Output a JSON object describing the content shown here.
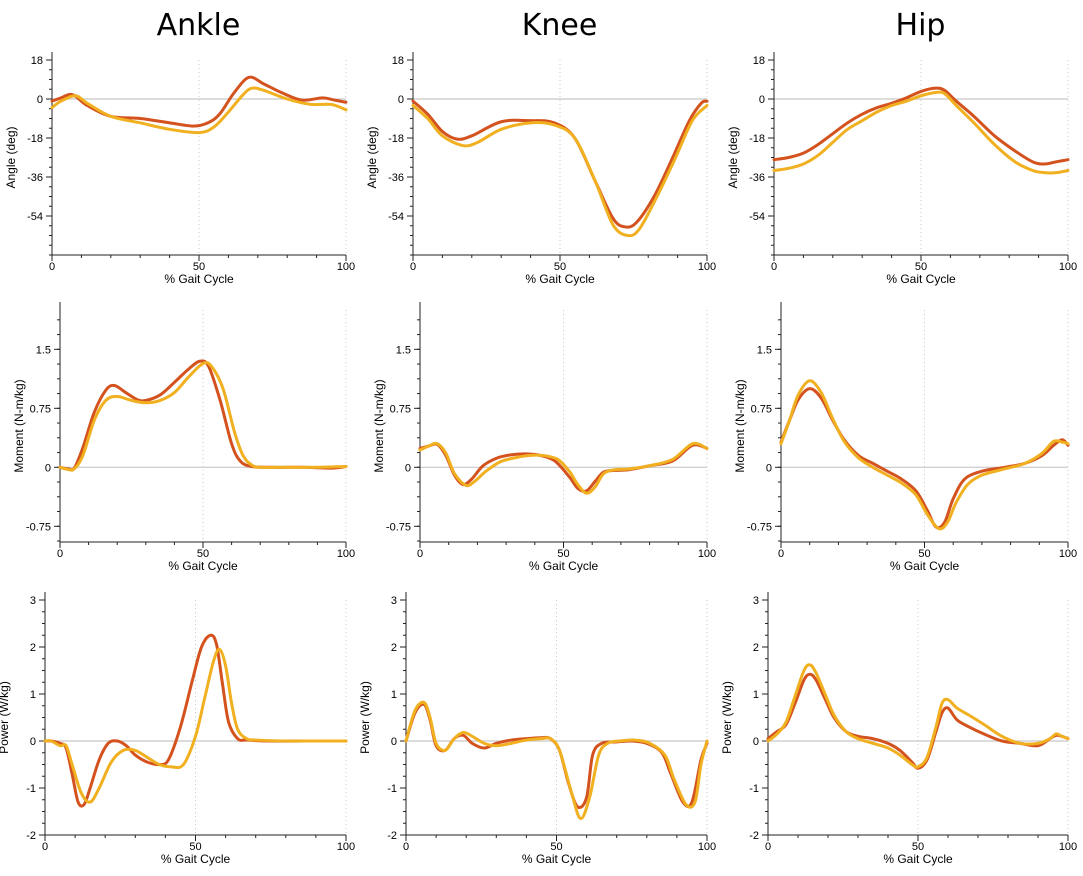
{
  "column_titles": [
    "Ankle",
    "Knee",
    "Hip"
  ],
  "colors": {
    "series_a": "#d4521e",
    "series_b": "#f0b020",
    "zero_line": "#c8c8c8",
    "grid": "#c8c8c8"
  },
  "chart_data": [
    {
      "id": "ankle-angle",
      "type": "line",
      "xlabel": "% Gait Cycle",
      "ylabel": "Angle (deg)",
      "xlim": [
        0,
        100
      ],
      "ylim": [
        -72,
        18
      ],
      "xticks": [
        0,
        50,
        100
      ],
      "yticks": [
        18,
        0,
        -18,
        -36,
        -54
      ],
      "series": [
        {
          "x": [
            0,
            3,
            7,
            12,
            20,
            30,
            40,
            48,
            53,
            57,
            62,
            67,
            72,
            78,
            85,
            92,
            96,
            100
          ],
          "values": [
            -1,
            0.5,
            2,
            -3,
            -8,
            -9,
            -11,
            -12.5,
            -11,
            -7,
            3,
            10,
            7,
            3,
            -0.5,
            0.5,
            -0.5,
            -1.5
          ]
        },
        {
          "x": [
            0,
            3,
            8,
            12,
            20,
            30,
            40,
            50,
            55,
            60,
            65,
            68,
            72,
            80,
            88,
            95,
            100
          ],
          "values": [
            -4,
            -1,
            1.5,
            -2,
            -8,
            -11,
            -14,
            -15.5,
            -13,
            -6,
            2,
            5,
            4,
            0,
            -2.5,
            -2.5,
            -5
          ]
        }
      ]
    },
    {
      "id": "knee-angle",
      "type": "line",
      "xlabel": "% Gait Cycle",
      "ylabel": "Angle (deg)",
      "xlim": [
        0,
        100
      ],
      "ylim": [
        -72,
        18
      ],
      "xticks": [
        0,
        50,
        100
      ],
      "yticks": [
        18,
        0,
        -18,
        -36,
        -54
      ],
      "series": [
        {
          "x": [
            0,
            5,
            10,
            15,
            20,
            30,
            40,
            48,
            55,
            62,
            68,
            72,
            76,
            82,
            88,
            94,
            98,
            100
          ],
          "values": [
            -1,
            -7,
            -15,
            -18.5,
            -17,
            -10.5,
            -10,
            -11,
            -18,
            -38,
            -55,
            -59,
            -57,
            -45,
            -28,
            -10,
            -2,
            -1
          ]
        },
        {
          "x": [
            0,
            5,
            10,
            17,
            22,
            30,
            40,
            48,
            55,
            62,
            68,
            73,
            77,
            83,
            89,
            95,
            100
          ],
          "values": [
            -3,
            -9,
            -17,
            -21.5,
            -20,
            -14,
            -11,
            -12,
            -18,
            -38,
            -58,
            -63,
            -60,
            -45,
            -28,
            -10,
            -3
          ]
        }
      ]
    },
    {
      "id": "hip-angle",
      "type": "line",
      "xlabel": "% Gait Cycle",
      "ylabel": "Angle (deg)",
      "xlim": [
        0,
        100
      ],
      "ylim": [
        -72,
        18
      ],
      "xticks": [
        0,
        50,
        100
      ],
      "yticks": [
        18,
        0,
        -18,
        -36,
        -54
      ],
      "series": [
        {
          "x": [
            0,
            5,
            10,
            15,
            20,
            25,
            30,
            35,
            40,
            45,
            50,
            55,
            58,
            62,
            68,
            75,
            82,
            88,
            92,
            96,
            100
          ],
          "values": [
            -28,
            -27,
            -25,
            -21,
            -16,
            -11,
            -7,
            -4,
            -2,
            0.5,
            3.5,
            5,
            4,
            -1,
            -8,
            -17,
            -24,
            -29,
            -30,
            -29,
            -28
          ]
        },
        {
          "x": [
            0,
            5,
            10,
            15,
            20,
            25,
            30,
            35,
            40,
            45,
            50,
            55,
            58,
            62,
            68,
            75,
            82,
            88,
            92,
            96,
            100
          ],
          "values": [
            -33,
            -32,
            -30,
            -26,
            -20,
            -14,
            -10,
            -6,
            -3,
            -1,
            1.5,
            3,
            2.5,
            -3,
            -11,
            -21,
            -29,
            -33,
            -34,
            -34,
            -33
          ]
        }
      ]
    },
    {
      "id": "ankle-moment",
      "type": "line",
      "xlabel": "% Gait Cycle",
      "ylabel": "Moment (N-m/kg)",
      "xlim": [
        0,
        100
      ],
      "ylim": [
        -0.95,
        2.0
      ],
      "xticks": [
        0,
        50,
        100
      ],
      "yticks": [
        1.5,
        0.75,
        0,
        -0.75
      ],
      "series": [
        {
          "x": [
            0,
            3,
            5,
            8,
            12,
            16,
            19,
            23,
            27,
            30,
            35,
            40,
            45,
            49,
            52,
            56,
            60,
            63,
            67,
            75,
            85,
            95,
            100
          ],
          "values": [
            0,
            -0.02,
            -0.01,
            0.25,
            0.7,
            0.98,
            1.04,
            0.95,
            0.86,
            0.85,
            0.92,
            1.08,
            1.25,
            1.35,
            1.28,
            0.85,
            0.3,
            0.08,
            0.01,
            0,
            0,
            -0.01,
            0.01
          ]
        },
        {
          "x": [
            0,
            3,
            5,
            8,
            12,
            16,
            20,
            25,
            30,
            35,
            40,
            45,
            50,
            53,
            57,
            61,
            64,
            67,
            70,
            80,
            90,
            100
          ],
          "values": [
            0,
            -0.03,
            -0.02,
            0.15,
            0.6,
            0.85,
            0.9,
            0.85,
            0.82,
            0.85,
            0.95,
            1.15,
            1.32,
            1.28,
            1.0,
            0.45,
            0.15,
            0.03,
            0,
            0,
            0,
            0.01
          ]
        }
      ]
    },
    {
      "id": "knee-moment",
      "type": "line",
      "xlabel": "% Gait Cycle",
      "ylabel": "Moment (N-m/kg)",
      "xlim": [
        0,
        100
      ],
      "ylim": [
        -0.95,
        2.0
      ],
      "xticks": [
        0,
        50,
        100
      ],
      "yticks": [
        1.5,
        0.75,
        0,
        -0.75
      ],
      "series": [
        {
          "x": [
            0,
            3,
            6,
            9,
            12,
            15,
            18,
            22,
            27,
            32,
            37,
            42,
            47,
            52,
            55,
            58,
            61,
            64,
            68,
            73,
            80,
            88,
            95,
            100
          ],
          "values": [
            0.24,
            0.27,
            0.29,
            0.15,
            -0.1,
            -0.22,
            -0.15,
            0.02,
            0.12,
            0.16,
            0.17,
            0.15,
            0.08,
            -0.12,
            -0.27,
            -0.3,
            -0.18,
            -0.06,
            -0.04,
            -0.03,
            0.02,
            0.08,
            0.28,
            0.24
          ]
        },
        {
          "x": [
            0,
            3,
            6,
            9,
            12,
            16,
            19,
            23,
            28,
            33,
            38,
            43,
            48,
            52,
            55,
            58,
            61,
            64,
            68,
            73,
            80,
            88,
            95,
            100
          ],
          "values": [
            0.22,
            0.27,
            0.3,
            0.18,
            -0.08,
            -0.23,
            -0.18,
            -0.05,
            0.07,
            0.12,
            0.15,
            0.15,
            0.1,
            -0.05,
            -0.22,
            -0.33,
            -0.25,
            -0.08,
            -0.03,
            -0.02,
            0.02,
            0.1,
            0.3,
            0.24
          ]
        }
      ]
    },
    {
      "id": "hip-moment",
      "type": "line",
      "xlabel": "% Gait Cycle",
      "ylabel": "Moment (N-m/kg)",
      "xlim": [
        0,
        100
      ],
      "ylim": [
        -0.95,
        2.0
      ],
      "xticks": [
        0,
        50,
        100
      ],
      "yticks": [
        1.5,
        0.75,
        0,
        -0.75
      ],
      "series": [
        {
          "x": [
            0,
            3,
            6,
            10,
            14,
            18,
            22,
            27,
            32,
            37,
            42,
            47,
            51,
            54,
            57,
            60,
            64,
            70,
            78,
            85,
            91,
            95,
            98,
            100
          ],
          "values": [
            0.32,
            0.6,
            0.86,
            1.0,
            0.88,
            0.6,
            0.35,
            0.15,
            0.05,
            -0.05,
            -0.15,
            -0.3,
            -0.55,
            -0.76,
            -0.7,
            -0.4,
            -0.15,
            -0.05,
            0.0,
            0.05,
            0.15,
            0.28,
            0.35,
            0.28
          ]
        },
        {
          "x": [
            0,
            3,
            6,
            10,
            14,
            18,
            22,
            27,
            32,
            37,
            42,
            47,
            51,
            55,
            58,
            61,
            65,
            70,
            78,
            85,
            91,
            95,
            98,
            100
          ],
          "values": [
            0.3,
            0.6,
            0.92,
            1.1,
            0.95,
            0.62,
            0.33,
            0.12,
            0.0,
            -0.1,
            -0.2,
            -0.35,
            -0.6,
            -0.78,
            -0.7,
            -0.45,
            -0.22,
            -0.1,
            -0.02,
            0.05,
            0.18,
            0.33,
            0.32,
            0.3
          ]
        }
      ]
    },
    {
      "id": "ankle-power",
      "type": "line",
      "xlabel": "% Gait Cycle",
      "ylabel": "Power (W/kg)",
      "xlim": [
        0,
        100
      ],
      "ylim": [
        -2,
        3
      ],
      "xticks": [
        0,
        50,
        100
      ],
      "yticks": [
        3,
        2,
        1,
        0,
        -1,
        -2
      ],
      "series": [
        {
          "x": [
            0,
            2,
            5,
            7,
            9,
            11,
            13,
            15,
            18,
            21,
            24,
            27,
            30,
            34,
            38,
            41,
            45,
            49,
            52,
            55,
            57,
            59,
            61,
            64,
            67,
            75,
            90,
            100
          ],
          "values": [
            0,
            0,
            -0.05,
            -0.15,
            -0.7,
            -1.3,
            -1.35,
            -1.0,
            -0.4,
            -0.05,
            0.0,
            -0.1,
            -0.3,
            -0.45,
            -0.5,
            -0.4,
            0.3,
            1.3,
            2.0,
            2.25,
            2.05,
            1.2,
            0.4,
            0.05,
            0.02,
            0,
            0,
            0
          ]
        },
        {
          "x": [
            0,
            2,
            5,
            7,
            9,
            12,
            15,
            18,
            22,
            26,
            30,
            34,
            38,
            42,
            46,
            50,
            53,
            56,
            58,
            60,
            62,
            64,
            67,
            70,
            80,
            90,
            100
          ],
          "values": [
            0,
            0,
            -0.1,
            -0.1,
            -0.5,
            -1.1,
            -1.3,
            -1.0,
            -0.45,
            -0.2,
            -0.2,
            -0.35,
            -0.5,
            -0.55,
            -0.5,
            0.1,
            0.9,
            1.7,
            1.95,
            1.6,
            0.8,
            0.25,
            0.05,
            0.02,
            0,
            0,
            0
          ]
        }
      ]
    },
    {
      "id": "knee-power",
      "type": "line",
      "xlabel": "% Gait Cycle",
      "ylabel": "Power (W/kg)",
      "xlim": [
        0,
        100
      ],
      "ylim": [
        -2,
        3
      ],
      "xticks": [
        0,
        50,
        100
      ],
      "yticks": [
        3,
        2,
        1,
        0,
        -1,
        -2
      ],
      "series": [
        {
          "x": [
            0,
            3,
            6,
            8,
            10,
            13,
            16,
            19,
            22,
            26,
            30,
            35,
            40,
            45,
            48,
            51,
            54,
            57,
            60,
            62,
            65,
            70,
            75,
            80,
            85,
            88,
            92,
            95,
            98,
            100
          ],
          "values": [
            0,
            0.6,
            0.78,
            0.45,
            -0.1,
            -0.2,
            0.05,
            0.12,
            -0.05,
            -0.15,
            -0.05,
            0.02,
            0.05,
            0.07,
            0.05,
            -0.2,
            -0.9,
            -1.4,
            -1.2,
            -0.3,
            -0.05,
            -0.02,
            0,
            -0.05,
            -0.25,
            -0.7,
            -1.3,
            -1.3,
            -0.4,
            -0.05
          ]
        },
        {
          "x": [
            0,
            3,
            6,
            8,
            10,
            13,
            16,
            19,
            22,
            26,
            30,
            35,
            40,
            45,
            48,
            51,
            55,
            58,
            61,
            64,
            67,
            71,
            76,
            81,
            86,
            89,
            93,
            96,
            98,
            100
          ],
          "values": [
            0,
            0.65,
            0.82,
            0.5,
            -0.05,
            -0.2,
            0.05,
            0.18,
            0.1,
            -0.05,
            -0.1,
            -0.05,
            0.02,
            0.05,
            0.05,
            -0.2,
            -1.1,
            -1.65,
            -1.2,
            -0.3,
            -0.05,
            0,
            0.02,
            -0.05,
            -0.3,
            -0.8,
            -1.35,
            -1.3,
            -0.5,
            0
          ]
        }
      ]
    },
    {
      "id": "hip-power",
      "type": "line",
      "xlabel": "% Gait Cycle",
      "ylabel": "Power (W/kg)",
      "xlim": [
        0,
        100
      ],
      "ylim": [
        -2,
        3
      ],
      "xticks": [
        0,
        50,
        100
      ],
      "yticks": [
        3,
        2,
        1,
        0,
        -1,
        -2
      ],
      "series": [
        {
          "x": [
            0,
            3,
            6,
            9,
            12,
            14,
            16,
            19,
            22,
            26,
            30,
            35,
            40,
            44,
            48,
            50,
            53,
            56,
            58,
            60,
            63,
            67,
            72,
            78,
            84,
            90,
            94,
            96,
            98,
            100
          ],
          "values": [
            0.05,
            0.2,
            0.35,
            0.8,
            1.3,
            1.42,
            1.3,
            0.9,
            0.5,
            0.2,
            0.1,
            0.05,
            -0.05,
            -0.2,
            -0.45,
            -0.58,
            -0.4,
            0.2,
            0.6,
            0.7,
            0.45,
            0.3,
            0.15,
            0.0,
            -0.05,
            -0.1,
            0.05,
            0.12,
            0.1,
            0.05
          ]
        },
        {
          "x": [
            0,
            3,
            6,
            9,
            12,
            14,
            16,
            19,
            22,
            26,
            30,
            35,
            40,
            44,
            48,
            50,
            53,
            56,
            58,
            60,
            63,
            67,
            72,
            78,
            84,
            90,
            94,
            96,
            98,
            100
          ],
          "values": [
            0.0,
            0.15,
            0.4,
            0.95,
            1.5,
            1.62,
            1.45,
            1.0,
            0.55,
            0.2,
            0.05,
            -0.05,
            -0.15,
            -0.3,
            -0.5,
            -0.55,
            -0.35,
            0.3,
            0.8,
            0.88,
            0.7,
            0.55,
            0.35,
            0.1,
            -0.05,
            -0.05,
            0.05,
            0.15,
            0.1,
            0.05
          ]
        }
      ]
    }
  ]
}
